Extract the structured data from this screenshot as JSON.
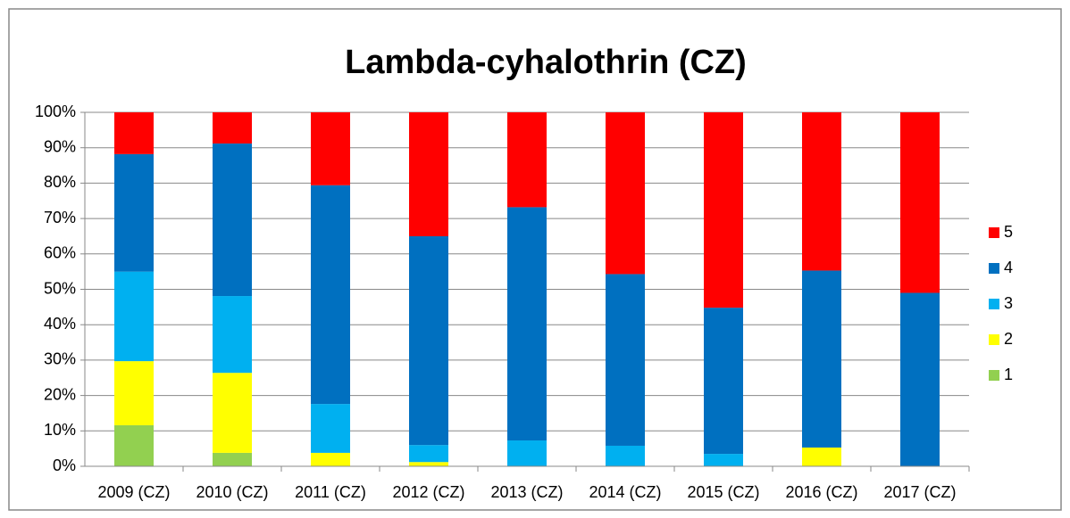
{
  "chart_data": {
    "type": "stacked_bar",
    "title": "Lambda-cyhalothrin (CZ)",
    "categories": [
      "2009 (CZ)",
      "2010 (CZ)",
      "2011 (CZ)",
      "2012 (CZ)",
      "2013 (CZ)",
      "2014 (CZ)",
      "2015 (CZ)",
      "2016 (CZ)",
      "2017 (CZ)"
    ],
    "series": [
      {
        "name": "1",
        "color": "#92d050",
        "values": [
          11.6,
          3.8,
          0,
          0,
          0,
          0,
          0,
          0,
          0
        ]
      },
      {
        "name": "2",
        "color": "#ffff00",
        "values": [
          18.1,
          22.6,
          3.8,
          1.2,
          0,
          0,
          0,
          5.3,
          0
        ]
      },
      {
        "name": "3",
        "color": "#00b0f0",
        "values": [
          25.3,
          21.7,
          13.8,
          4.8,
          7.3,
          5.8,
          3.5,
          0,
          0
        ]
      },
      {
        "name": "4",
        "color": "#0070c0",
        "values": [
          33.2,
          43.1,
          61.8,
          59.0,
          65.9,
          48.5,
          41.3,
          50.0,
          49.0
        ]
      },
      {
        "name": "5",
        "color": "#ff0000",
        "values": [
          11.8,
          8.8,
          20.6,
          35.0,
          26.8,
          45.7,
          55.2,
          44.7,
          51.0
        ]
      }
    ],
    "ylim": [
      0,
      100
    ],
    "yticks": [
      {
        "value": 0,
        "label": "0%"
      },
      {
        "value": 10,
        "label": "10%"
      },
      {
        "value": 20,
        "label": "20%"
      },
      {
        "value": 30,
        "label": "30%"
      },
      {
        "value": 40,
        "label": "40%"
      },
      {
        "value": 50,
        "label": "50%"
      },
      {
        "value": 60,
        "label": "60%"
      },
      {
        "value": 70,
        "label": "70%"
      },
      {
        "value": 80,
        "label": "80%"
      },
      {
        "value": 90,
        "label": "90%"
      },
      {
        "value": 100,
        "label": "100%"
      }
    ],
    "grid": true,
    "legend": "right"
  }
}
